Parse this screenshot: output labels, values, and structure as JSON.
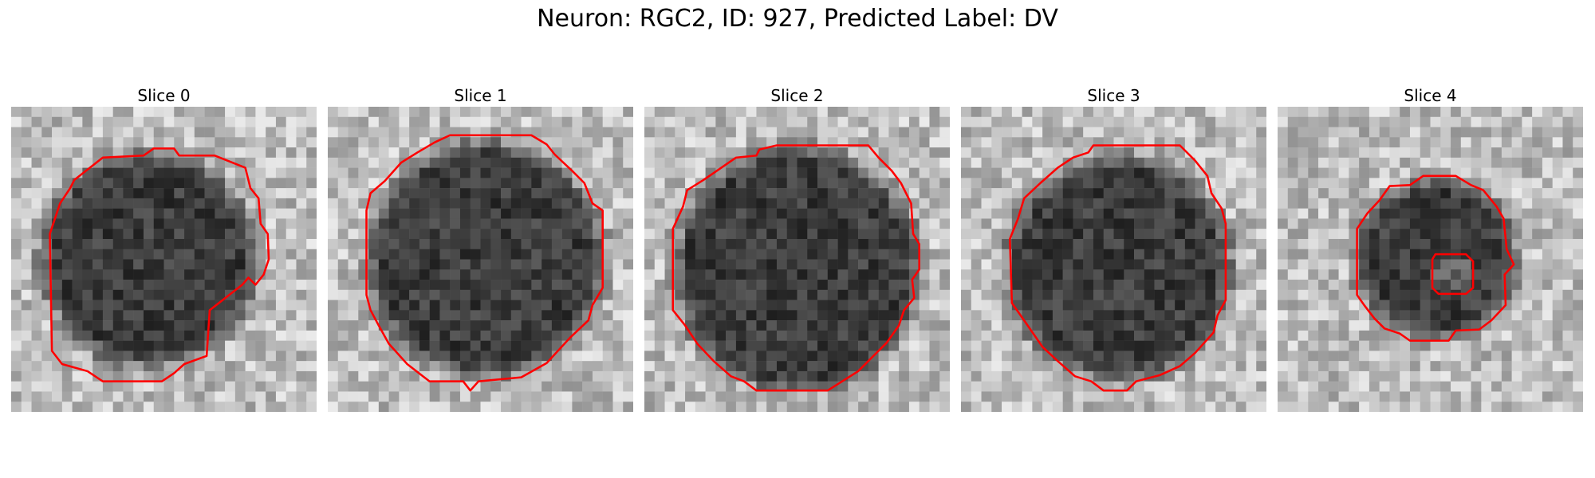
{
  "figure": {
    "title": "Neuron: RGC2, ID: 927, Predicted Label: DV",
    "panels": [
      {
        "title": "Slice 0",
        "cell": "large",
        "contour_color": "#ff0000"
      },
      {
        "title": "Slice 1",
        "cell": "large",
        "contour_color": "#ff0000"
      },
      {
        "title": "Slice 2",
        "cell": "large",
        "contour_color": "#ff0000"
      },
      {
        "title": "Slice 3",
        "cell": "large",
        "contour_color": "#ff0000"
      },
      {
        "title": "Slice 4",
        "cell": "small with inner hole",
        "contour_color": "#ff0000"
      }
    ]
  },
  "colors": {
    "background": "#ffffff",
    "contour": "#ff0000",
    "text": "#000000"
  }
}
